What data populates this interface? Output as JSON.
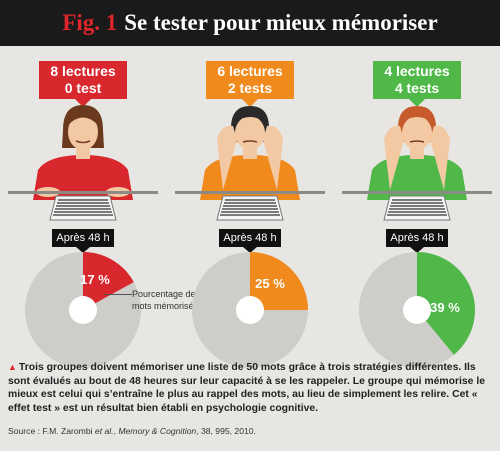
{
  "header": {
    "fig_label": "Fig. 1",
    "title": "Se tester pour mieux mémoriser"
  },
  "colors": {
    "red": "#d9272e",
    "orange": "#f08a1c",
    "green": "#4fb848",
    "pie_bg": "#cfcdca",
    "header_bg": "#1a1a1a"
  },
  "groups": [
    {
      "line1": "8 lectures",
      "line2": "0 test",
      "after": "Après 48 h",
      "percent_label": "17 %",
      "percent": 17,
      "color": "#d9272e",
      "pose": "sitting"
    },
    {
      "line1": "6 lectures",
      "line2": "2 tests",
      "after": "Après 48 h",
      "percent_label": "25 %",
      "percent": 25,
      "color": "#f08a1c",
      "pose": "head"
    },
    {
      "line1": "4 lectures",
      "line2": "4 tests",
      "after": "Après 48 h",
      "percent_label": "39 %",
      "percent": 39,
      "color": "#4fb848",
      "pose": "head"
    }
  ],
  "annotation": {
    "text": "Pourcentage de mots mémorisés"
  },
  "caption": {
    "text": "Trois groupes doivent mémoriser une liste de 50 mots grâce à trois stratégies différentes. Ils sont évalués au bout de 48 heures sur leur capacité à se les rappeler. Le groupe qui mémorise le mieux est celui qui s’entraîne le plus au rappel des mots, au lieu de simplement les relire. Cet « effet test » est un résultat bien établi en psychologie cognitive."
  },
  "source": {
    "prefix": "Source : F.M. Zarombi",
    "etal": " et al.",
    "middle": ", ",
    "journal": "Memory & Cognition",
    "suffix": ", 38, 995, 2010."
  },
  "chart_data": {
    "type": "pie",
    "title": "",
    "categories": [
      "8 lectures 0 test",
      "6 lectures 2 tests",
      "4 lectures 4 tests"
    ],
    "values": [
      17,
      25,
      39
    ],
    "unit": "%"
  }
}
